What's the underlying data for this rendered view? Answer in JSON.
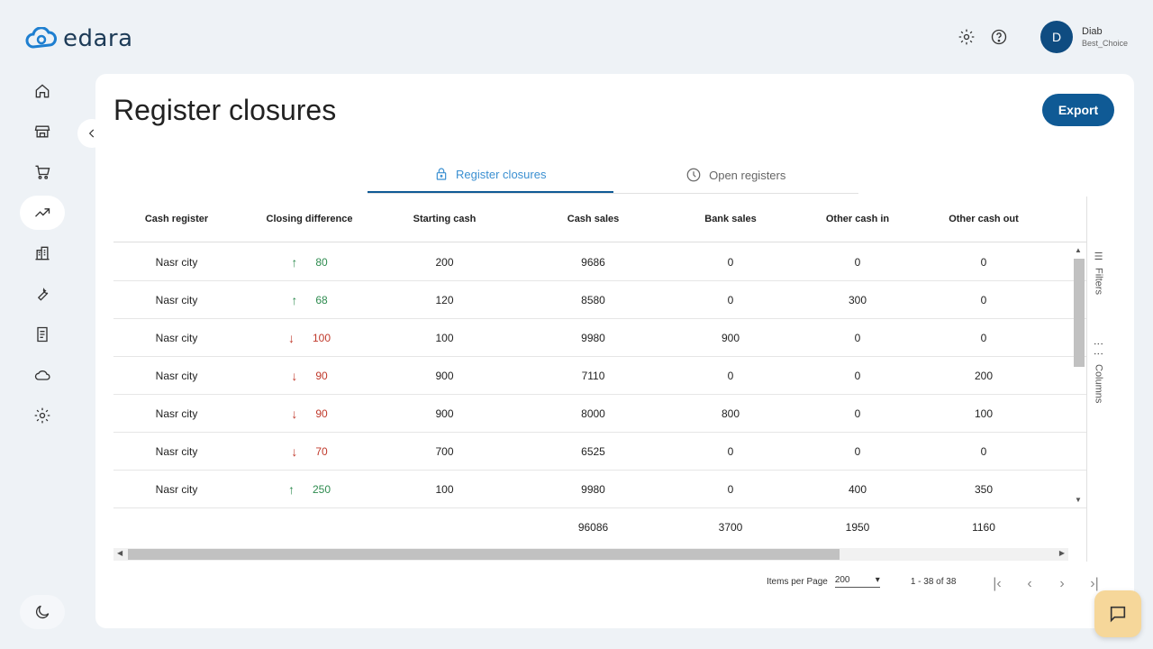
{
  "app": {
    "brand": "edara"
  },
  "user": {
    "initial": "D",
    "name": "Diab",
    "org": "Best_Choice"
  },
  "page": {
    "title": "Register closures",
    "export_label": "Export"
  },
  "tabs": [
    {
      "label": "Register closures",
      "icon": "lock-icon",
      "active": true
    },
    {
      "label": "Open registers",
      "icon": "clock-icon",
      "active": false
    }
  ],
  "grid": {
    "columns": [
      "Cash register",
      "Closing difference",
      "Starting cash",
      "Cash sales",
      "Bank sales",
      "Other cash in",
      "Other cash out"
    ],
    "rows": [
      {
        "register": "Nasr city",
        "dir": "up",
        "diff": "80",
        "starting": "200",
        "cash_sales": "9686",
        "bank": "0",
        "cash_in": "0",
        "cash_out": "0"
      },
      {
        "register": "Nasr city",
        "dir": "up",
        "diff": "68",
        "starting": "120",
        "cash_sales": "8580",
        "bank": "0",
        "cash_in": "300",
        "cash_out": "0"
      },
      {
        "register": "Nasr city",
        "dir": "down",
        "diff": "100",
        "starting": "100",
        "cash_sales": "9980",
        "bank": "900",
        "cash_in": "0",
        "cash_out": "0"
      },
      {
        "register": "Nasr city",
        "dir": "down",
        "diff": "90",
        "starting": "900",
        "cash_sales": "7110",
        "bank": "0",
        "cash_in": "0",
        "cash_out": "200"
      },
      {
        "register": "Nasr city",
        "dir": "down",
        "diff": "90",
        "starting": "900",
        "cash_sales": "8000",
        "bank": "800",
        "cash_in": "0",
        "cash_out": "100"
      },
      {
        "register": "Nasr city",
        "dir": "down",
        "diff": "70",
        "starting": "700",
        "cash_sales": "6525",
        "bank": "0",
        "cash_in": "0",
        "cash_out": "0"
      },
      {
        "register": "Nasr city",
        "dir": "up",
        "diff": "250",
        "starting": "100",
        "cash_sales": "9980",
        "bank": "0",
        "cash_in": "400",
        "cash_out": "350"
      }
    ],
    "totals": {
      "cash_sales": "96086",
      "bank": "3700",
      "cash_in": "1950",
      "cash_out": "1160"
    },
    "side_panel": {
      "filters": "Filters",
      "columns": "Columns"
    }
  },
  "pager": {
    "items_label": "Items per Page",
    "page_size": "200",
    "range": "1 - 38 of 38"
  },
  "colors": {
    "accent": "#0f5a95",
    "up": "#2e8b4f",
    "down": "#c0392b",
    "chat": "#f6d79a"
  }
}
